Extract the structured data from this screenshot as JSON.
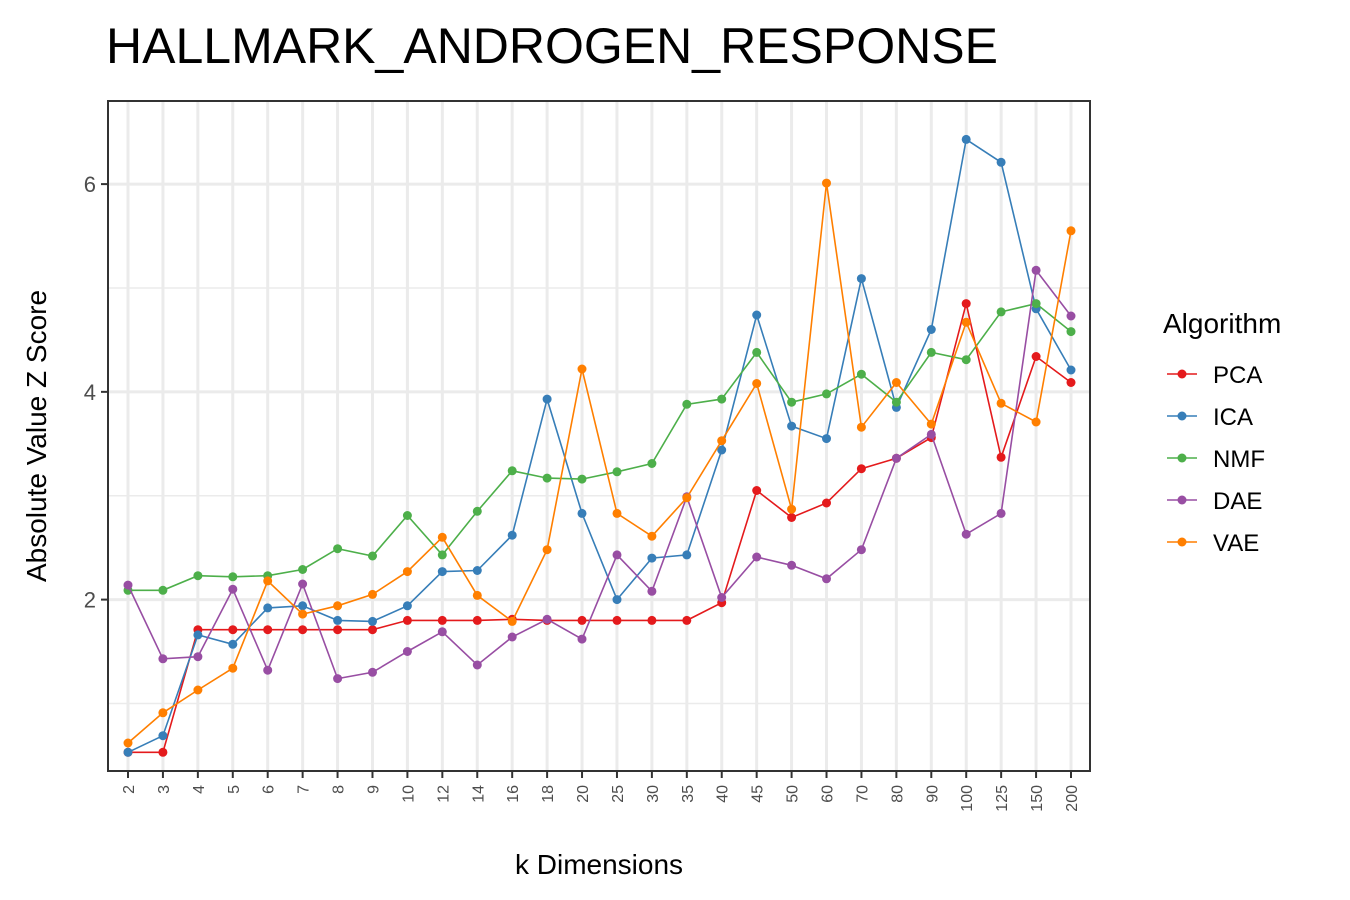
{
  "chart_data": {
    "type": "line",
    "title": "HALLMARK_ANDROGEN_RESPONSE",
    "xlabel": "k Dimensions",
    "ylabel": "Absolute Value Z Score",
    "x": [
      "2",
      "3",
      "4",
      "5",
      "6",
      "7",
      "8",
      "9",
      "10",
      "12",
      "14",
      "16",
      "18",
      "20",
      "25",
      "30",
      "35",
      "40",
      "45",
      "50",
      "60",
      "70",
      "80",
      "90",
      "100",
      "125",
      "150",
      "200"
    ],
    "ylim": [
      0.35,
      6.8
    ],
    "yticks": [
      2,
      4,
      6
    ],
    "grid": true,
    "legend_title": "Algorithm",
    "legend_position": "right",
    "series": [
      {
        "name": "PCA",
        "color": "#e41a1c",
        "values": [
          0.53,
          0.53,
          1.71,
          1.71,
          1.71,
          1.71,
          1.71,
          1.71,
          1.8,
          1.8,
          1.8,
          1.81,
          1.8,
          1.8,
          1.8,
          1.8,
          1.8,
          1.97,
          3.05,
          2.79,
          2.93,
          3.26,
          3.36,
          3.56,
          4.85,
          3.37,
          4.34,
          4.09
        ]
      },
      {
        "name": "ICA",
        "color": "#377eb8",
        "values": [
          0.53,
          0.69,
          1.66,
          1.57,
          1.92,
          1.94,
          1.8,
          1.79,
          1.94,
          2.27,
          2.28,
          2.62,
          3.93,
          2.83,
          2.0,
          2.4,
          2.43,
          3.44,
          4.74,
          3.67,
          3.55,
          5.09,
          3.85,
          4.6,
          6.43,
          6.21,
          4.8,
          4.21
        ]
      },
      {
        "name": "NMF",
        "color": "#4daf4a",
        "values": [
          2.09,
          2.09,
          2.23,
          2.22,
          2.23,
          2.29,
          2.49,
          2.42,
          2.81,
          2.43,
          2.85,
          3.24,
          3.17,
          3.16,
          3.23,
          3.31,
          3.88,
          3.93,
          4.38,
          3.9,
          3.98,
          4.17,
          3.9,
          4.38,
          4.31,
          4.77,
          4.85,
          4.58
        ]
      },
      {
        "name": "DAE",
        "color": "#984ea3",
        "values": [
          2.14,
          1.43,
          1.45,
          2.1,
          1.32,
          2.15,
          1.24,
          1.3,
          1.5,
          1.69,
          1.37,
          1.64,
          1.81,
          1.62,
          2.43,
          2.08,
          2.99,
          2.02,
          2.41,
          2.33,
          2.2,
          2.48,
          3.36,
          3.59,
          2.63,
          2.83,
          5.17,
          4.73
        ]
      },
      {
        "name": "VAE",
        "color": "#ff7f00",
        "values": [
          0.62,
          0.91,
          1.13,
          1.34,
          2.18,
          1.86,
          1.94,
          2.05,
          2.27,
          2.6,
          2.04,
          1.79,
          2.48,
          4.22,
          2.83,
          2.61,
          2.98,
          3.53,
          4.08,
          2.87,
          6.01,
          3.66,
          4.09,
          3.69,
          4.67,
          3.89,
          3.71,
          5.55
        ]
      }
    ]
  }
}
